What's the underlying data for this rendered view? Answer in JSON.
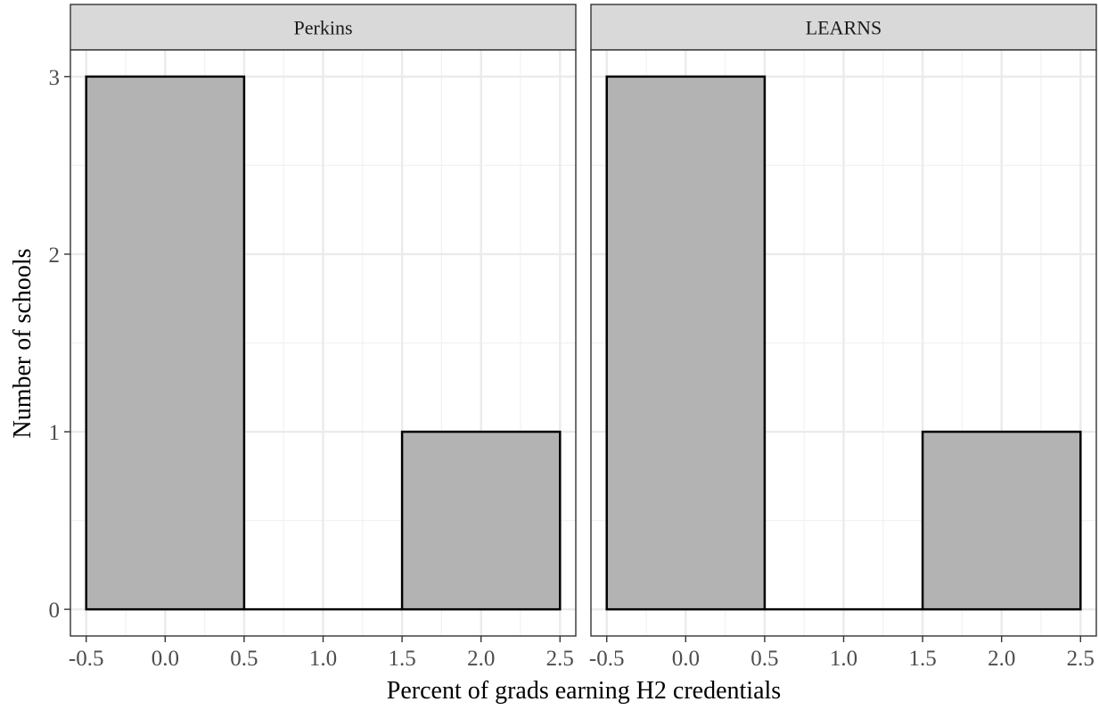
{
  "chart_data": {
    "type": "bar",
    "subtype": "histogram-facets",
    "xlabel": "Percent of grads earning H2 credentials",
    "ylabel": "Number of schools",
    "xlim": [
      -0.6,
      2.6
    ],
    "ylim": [
      -0.15,
      3.15
    ],
    "x_ticks": [
      "-0.5",
      "0.0",
      "0.5",
      "1.0",
      "1.5",
      "2.0",
      "2.5"
    ],
    "x_tick_values": [
      -0.5,
      0.0,
      0.5,
      1.0,
      1.5,
      2.0,
      2.5
    ],
    "y_ticks": [
      "0",
      "1",
      "2",
      "3"
    ],
    "y_tick_values": [
      0,
      1,
      2,
      3
    ],
    "grid": true,
    "bar_fill": "#b3b3b3",
    "bar_outline": "#000000",
    "panels": [
      {
        "strip_label": "Perkins",
        "bins": [
          {
            "x_start": -0.5,
            "x_end": 0.5,
            "count": 3
          },
          {
            "x_start": 0.5,
            "x_end": 1.5,
            "count": 0
          },
          {
            "x_start": 1.5,
            "x_end": 2.5,
            "count": 1
          }
        ]
      },
      {
        "strip_label": "LEARNS",
        "bins": [
          {
            "x_start": -0.5,
            "x_end": 0.5,
            "count": 3
          },
          {
            "x_start": 0.5,
            "x_end": 1.5,
            "count": 0
          },
          {
            "x_start": 1.5,
            "x_end": 2.5,
            "count": 1
          }
        ]
      }
    ]
  }
}
